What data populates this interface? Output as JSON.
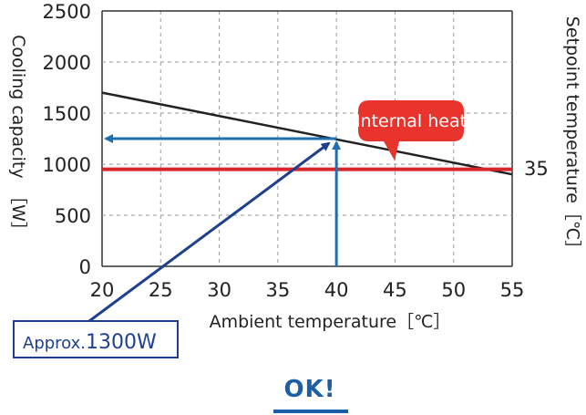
{
  "chart_data": {
    "type": "line",
    "xlabel": "Ambient temperature［℃］",
    "ylabel_left": "Cooling capacity　［W］",
    "ylabel_right": "Setpoint temperature［℃］",
    "xlim": [
      20,
      55
    ],
    "ylim": [
      0,
      2500
    ],
    "x_ticks": [
      20,
      25,
      30,
      35,
      40,
      45,
      50,
      55
    ],
    "y_ticks": [
      0,
      500,
      1000,
      1500,
      2000,
      2500
    ],
    "grid": true,
    "series": [
      {
        "name": "",
        "color": "#222222",
        "x": [
          20,
          55
        ],
        "y": [
          1700,
          900
        ]
      },
      {
        "name": "Internal heat",
        "color": "#d9252a",
        "x": [
          20,
          55
        ],
        "y": [
          950,
          950
        ]
      }
    ],
    "reference_x": 40,
    "reference_y": 1250,
    "reference_color": "#1f6fb0",
    "annotations": {
      "internal_heat_label": "Internal heat",
      "setpoint_value": "35",
      "approx_prefix": "Approx.",
      "approx_value": "1300W"
    }
  },
  "footer": {
    "ok_label": "OK!",
    "color": "#1d5fa7"
  }
}
